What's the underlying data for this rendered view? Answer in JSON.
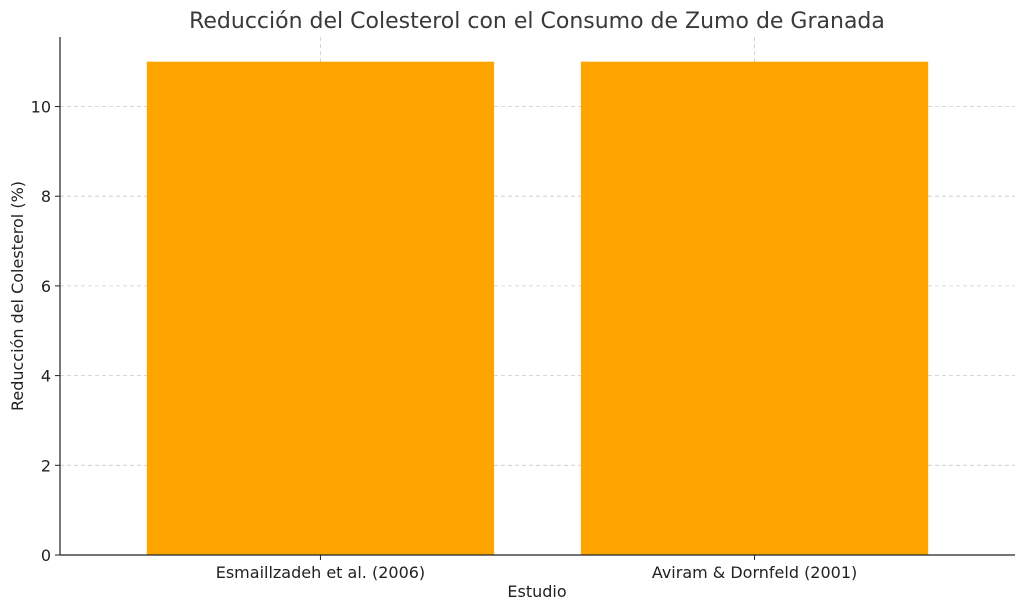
{
  "chart_data": {
    "type": "bar",
    "title": "Reducción del Colesterol con el Consumo de Zumo de Granada",
    "xlabel": "Estudio",
    "ylabel": "Reducción del Colesterol (%)",
    "categories": [
      "Esmaillzadeh et al. (2006)",
      "Aviram & Dornfeld (2001)"
    ],
    "values": [
      11,
      11
    ],
    "ylim": [
      0,
      11.55
    ],
    "yticks": [
      0,
      2,
      4,
      6,
      8,
      10
    ],
    "grid": true,
    "bar_color": "#FFA500"
  }
}
